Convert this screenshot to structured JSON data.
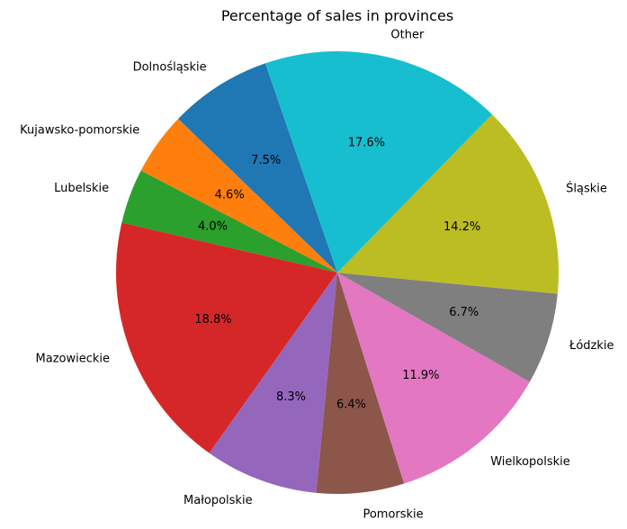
{
  "chart_data": {
    "type": "pie",
    "title": "Percentage of sales in provinces",
    "slices": [
      {
        "label": "Dolnośląskie",
        "value": 7.5,
        "pct_label": "7.5%",
        "color": "#1f77b4"
      },
      {
        "label": "Kujawsko-pomorskie",
        "value": 4.6,
        "pct_label": "4.6%",
        "color": "#ff7f0e"
      },
      {
        "label": "Lubelskie",
        "value": 4.0,
        "pct_label": "4.0%",
        "color": "#2ca02c"
      },
      {
        "label": "Mazowieckie",
        "value": 18.8,
        "pct_label": "18.8%",
        "color": "#d62728"
      },
      {
        "label": "Małopolskie",
        "value": 8.3,
        "pct_label": "8.3%",
        "color": "#9467bd"
      },
      {
        "label": "Pomorskie",
        "value": 6.4,
        "pct_label": "6.4%",
        "color": "#8c564b"
      },
      {
        "label": "Wielkopolskie",
        "value": 11.9,
        "pct_label": "11.9%",
        "color": "#e377c2"
      },
      {
        "label": "Łódzkie",
        "value": 6.7,
        "pct_label": "6.7%",
        "color": "#7f7f7f"
      },
      {
        "label": "Śląskie",
        "value": 14.2,
        "pct_label": "14.2%",
        "color": "#bcbd22"
      },
      {
        "label": "Other",
        "value": 17.6,
        "pct_label": "17.6%",
        "color": "#17becf"
      }
    ]
  }
}
